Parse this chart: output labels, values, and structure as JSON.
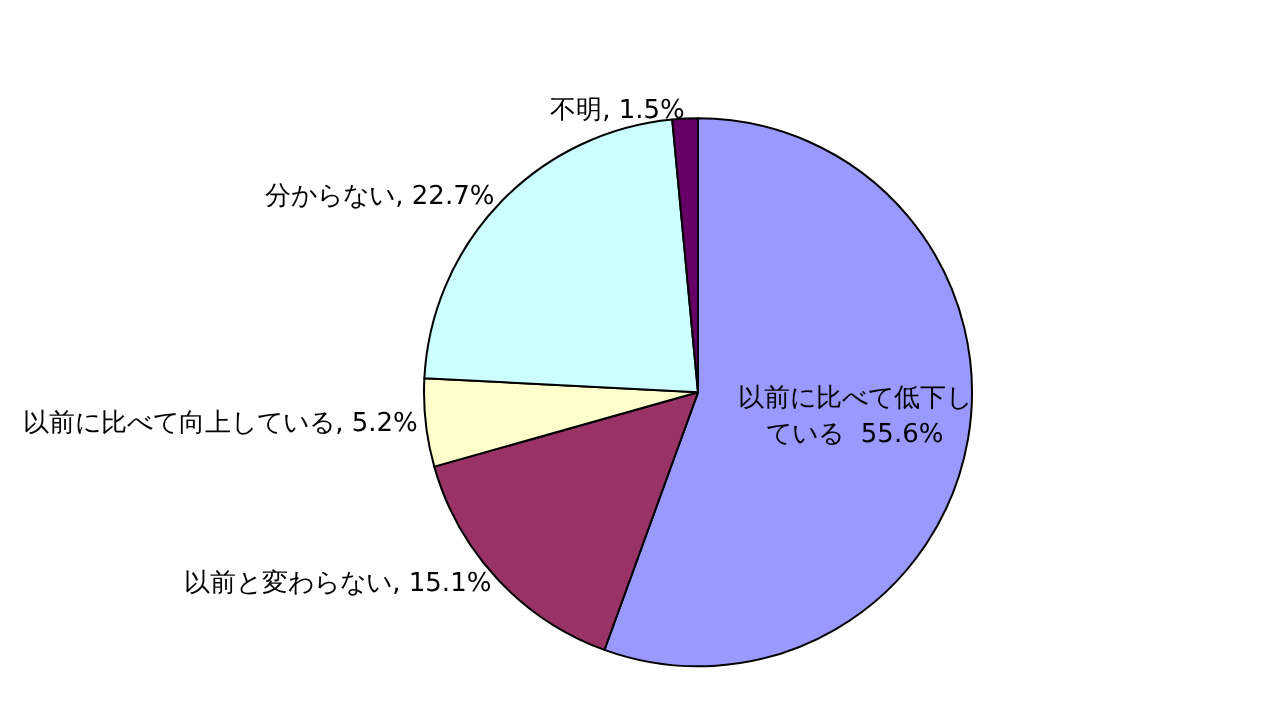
{
  "chart_data": {
    "type": "pie",
    "categories": [
      "以前に比べて低下している",
      "以前と変わらない",
      "以前に比べて向上している",
      "分からない",
      "不明"
    ],
    "values": [
      55.6,
      15.1,
      5.2,
      22.7,
      1.5
    ],
    "colors": [
      "#9999ff",
      "#993366",
      "#ffffcc",
      "#ccffff",
      "#660066"
    ],
    "value_labels": [
      "55.6%",
      "15.1%",
      "5.2%",
      "22.7%",
      "1.5%"
    ],
    "legend": false
  }
}
